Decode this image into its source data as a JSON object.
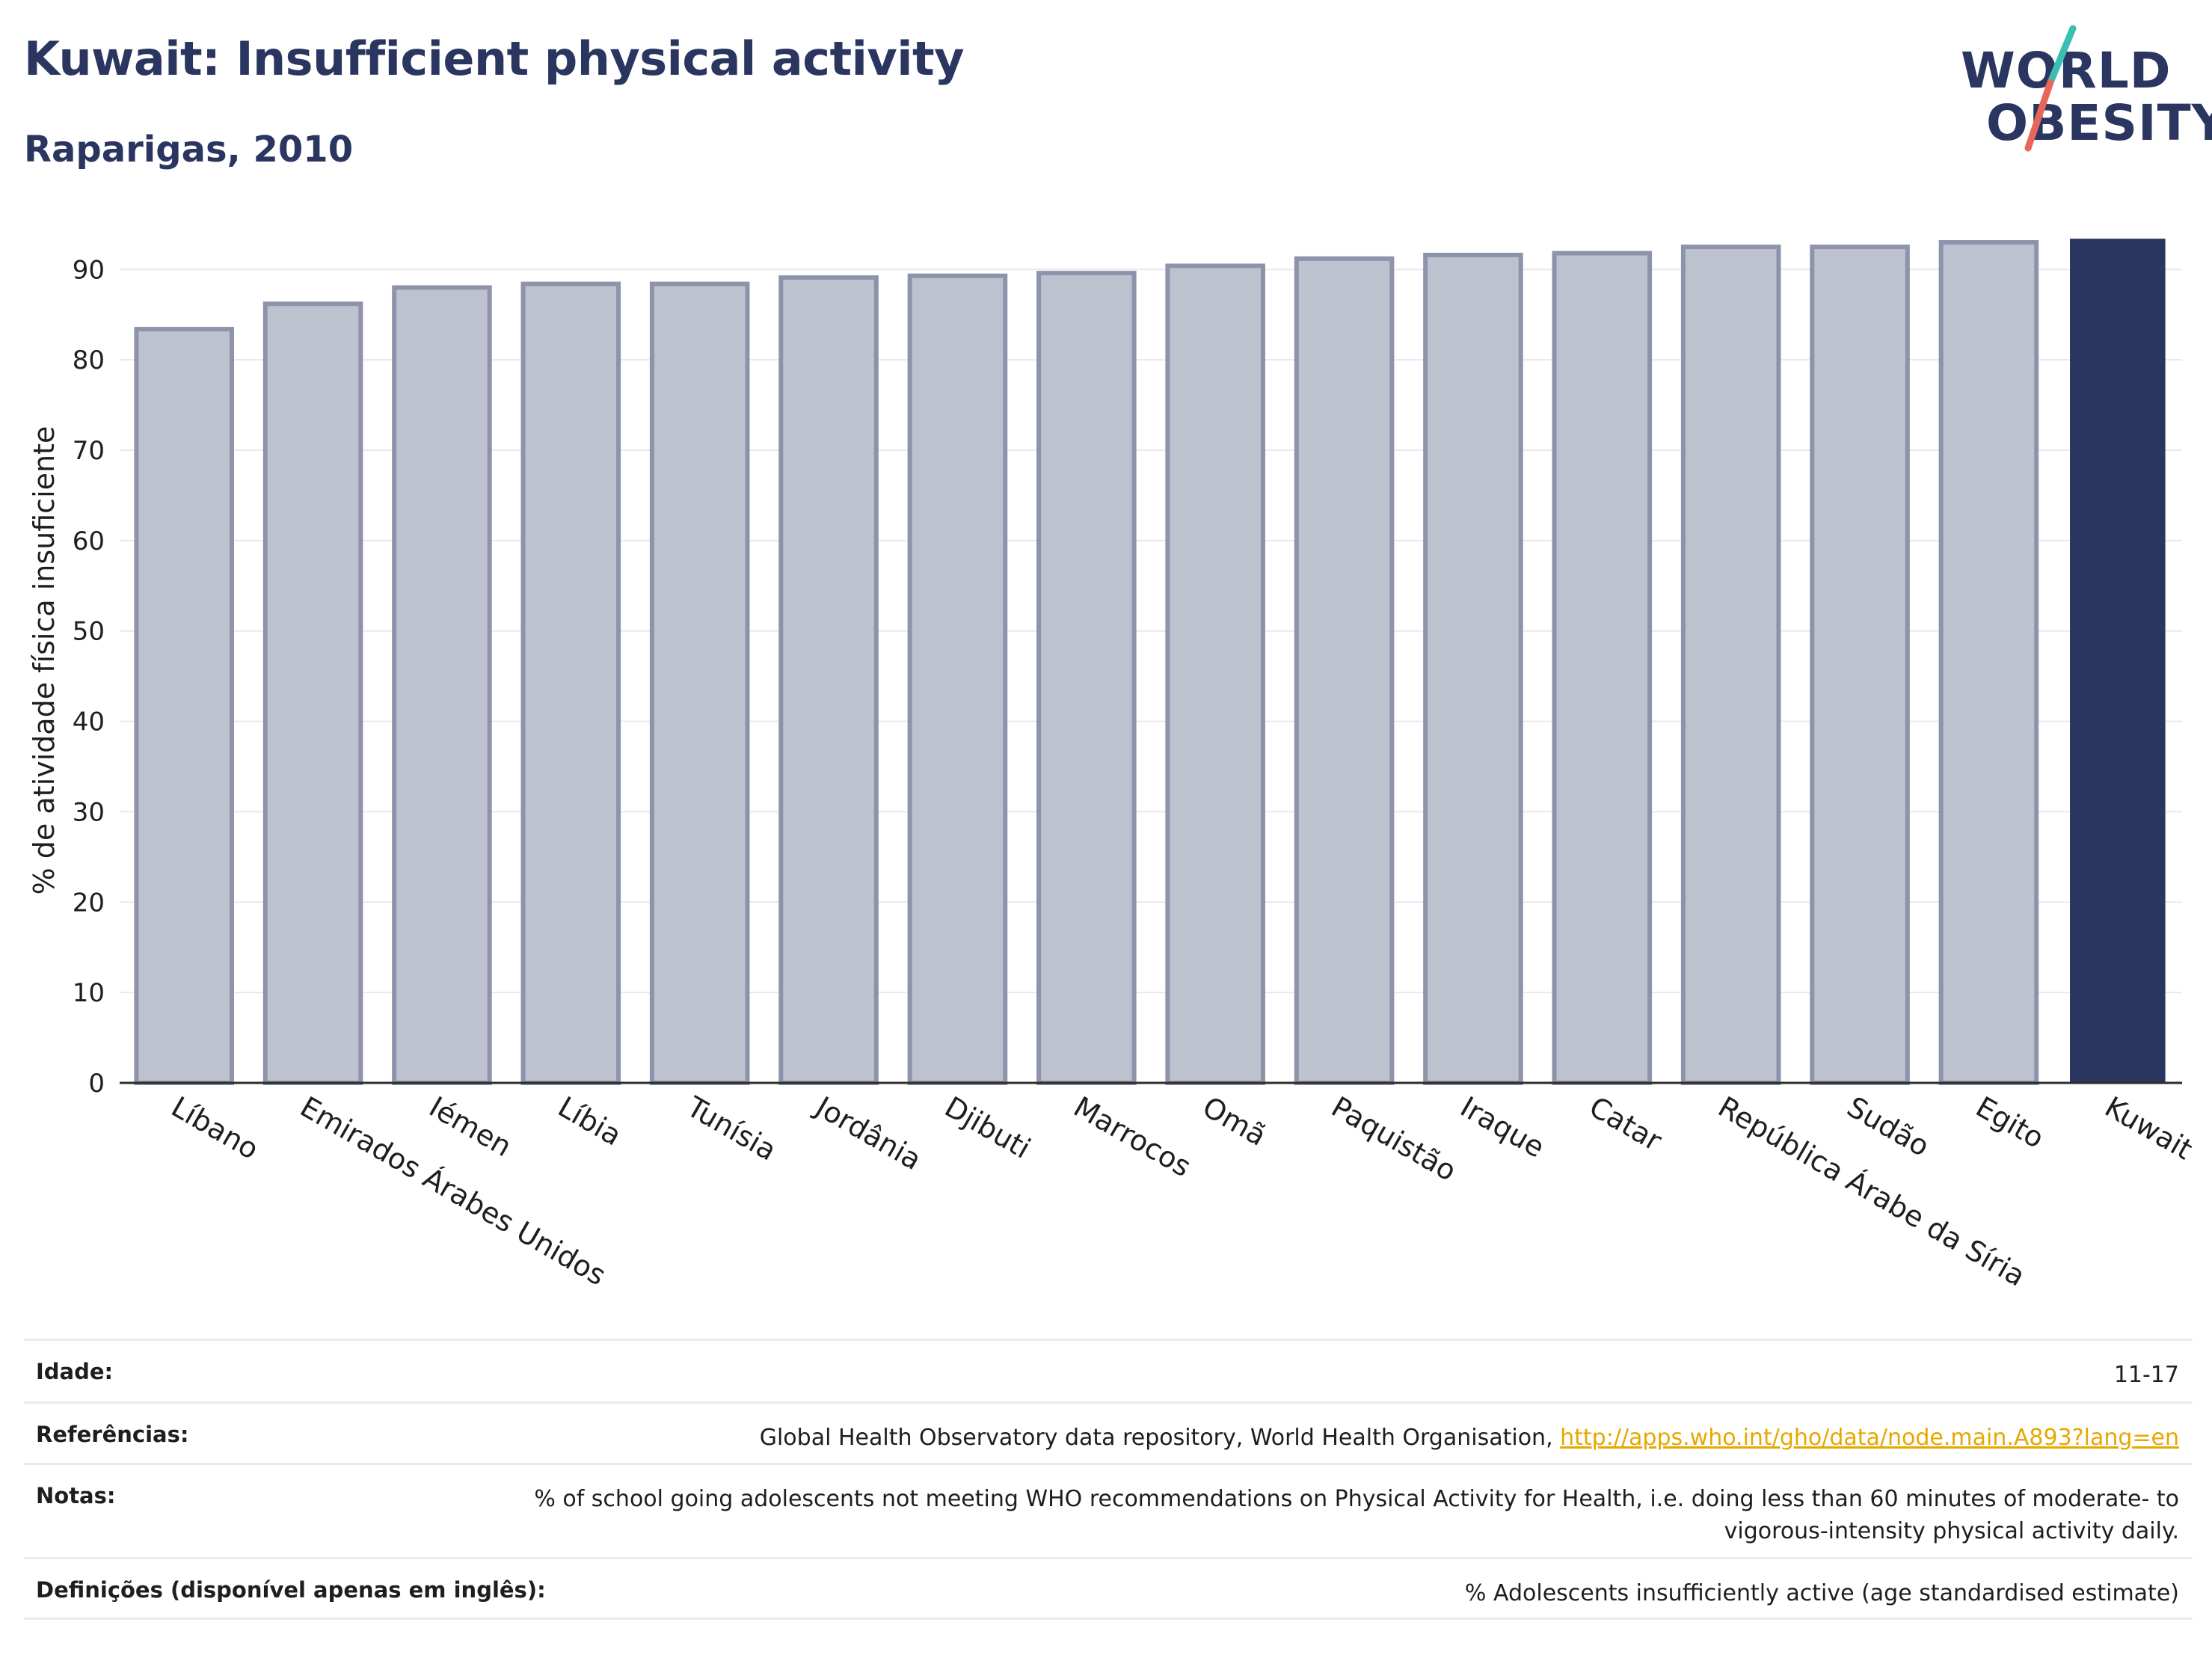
{
  "header": {
    "title": "Kuwait: Insufficient physical activity",
    "subtitle": "Raparigas, 2010"
  },
  "logo": {
    "line1": "WORLD",
    "line2": "OBESITY"
  },
  "colors": {
    "highlight_bar": "#2a3560",
    "other_bar_fill": "#bec2cf",
    "other_bar_stroke": "#8d93ab",
    "title": "#2a3560",
    "link": "#e6a800",
    "logo_teal": "#3bbfb2",
    "logo_red": "#e8675a"
  },
  "chart_data": {
    "type": "bar",
    "ylabel": "% de atividade física insuficiente",
    "ylim": [
      0,
      93.5
    ],
    "yticks": [
      0,
      10,
      20,
      30,
      40,
      50,
      60,
      70,
      80,
      90
    ],
    "grid": true,
    "highlight": "Kuwait",
    "categories": [
      "Líbano",
      "Emirados Árabes Unidos",
      "Iémen",
      "Líbia",
      "Tunísia",
      "Jordânia",
      "Djibuti",
      "Marrocos",
      "Omã",
      "Paquistão",
      "Iraque",
      "Catar",
      "República Árabe da Síria",
      "Sudão",
      "Egito",
      "Kuwait"
    ],
    "values": [
      83.4,
      86.2,
      88.0,
      88.4,
      88.4,
      89.1,
      89.3,
      89.6,
      90.4,
      91.2,
      91.6,
      91.8,
      92.5,
      92.5,
      93.0,
      93.4
    ]
  },
  "footer": {
    "rows": [
      {
        "label": "Idade:",
        "value": "11-17"
      },
      {
        "label": "Referências:",
        "value": "Global Health Observatory data repository, World Health Organisation, ",
        "link": "http://apps.who.int/gho/data/node.main.A893?lang=en"
      },
      {
        "label": "Notas:",
        "value": "% of school going adolescents not meeting WHO recommendations on Physical Activity for Health, i.e. doing less than 60 minutes of moderate- to vigorous-intensity physical activity daily."
      },
      {
        "label": "Definições (disponível apenas em inglês):",
        "value": "% Adolescents insufficiently active (age standardised estimate)"
      }
    ]
  }
}
